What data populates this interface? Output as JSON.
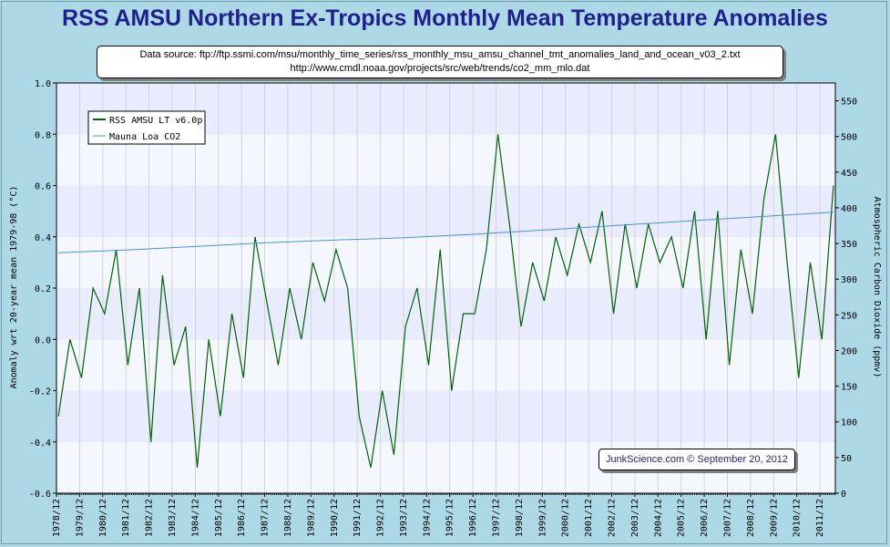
{
  "header": {
    "title": "RSS AMSU Northern Ex-Tropics Monthly Mean Temperature Anomalies"
  },
  "source": {
    "line1": "Data source: ftp://ftp.ssmi.com/msu/monthly_time_series/rss_monthly_msu_amsu_channel_tmt_anomalies_land_and_ocean_v03_2.txt",
    "line2": "http://www.cmdl.noaa.gov/projects/src/web/trends/co2_mm_mlo.dat"
  },
  "credit": {
    "text": "JunkScience.com © September 20, 2012"
  },
  "colors": {
    "background": "#add8e6",
    "plot_band_light": "#f5f7ff",
    "plot_band_dark": "#e9ecff",
    "temperature_series": "#006400",
    "co2_series": "#4a90e2",
    "title": "#1f1f8f"
  },
  "chart_data": {
    "type": "line",
    "title": "RSS AMSU Northern Ex-Tropics Monthly Mean Temperature Anomalies",
    "ylabel": "Anomaly wrt 20-year mean 1979-98 (°C)",
    "y2label": "Atmospheric Carbon Dioxide (ppmv)",
    "ylim": [
      -0.6,
      1.0
    ],
    "y2lim": [
      0,
      575
    ],
    "xlim": [
      "1978/12",
      "2012/08"
    ],
    "y_ticks": [
      "-0.6",
      "-0.4",
      "-0.2",
      "0.0",
      "0.2",
      "0.4",
      "0.6",
      "0.8",
      "1.0"
    ],
    "y2_ticks": [
      "0",
      "50",
      "100",
      "150",
      "200",
      "250",
      "300",
      "350",
      "400",
      "450",
      "500",
      "550"
    ],
    "x_ticks": [
      "1978/12",
      "1979/12",
      "1980/12",
      "1981/12",
      "1982/12",
      "1983/12",
      "1984/12",
      "1985/12",
      "1986/12",
      "1987/12",
      "1988/12",
      "1989/12",
      "1990/12",
      "1991/12",
      "1992/12",
      "1993/12",
      "1994/12",
      "1995/12",
      "1996/12",
      "1997/12",
      "1998/12",
      "1999/12",
      "2000/12",
      "2001/12",
      "2002/12",
      "2003/12",
      "2004/12",
      "2005/12",
      "2006/12",
      "2007/12",
      "2008/12",
      "2009/12",
      "2010/12",
      "2011/12"
    ],
    "grid": true,
    "legend": "top-left",
    "series": [
      {
        "name": "RSS AMSU LT v6.0p",
        "axis": "left",
        "x": [
          1979.0,
          1979.5,
          1980.0,
          1980.5,
          1981.0,
          1981.5,
          1982.0,
          1982.5,
          1983.0,
          1983.5,
          1984.0,
          1984.5,
          1985.0,
          1985.5,
          1986.0,
          1986.5,
          1987.0,
          1987.5,
          1988.0,
          1988.5,
          1989.0,
          1989.5,
          1990.0,
          1990.5,
          1991.0,
          1991.5,
          1992.0,
          1992.5,
          1993.0,
          1993.5,
          1994.0,
          1994.5,
          1995.0,
          1995.5,
          1996.0,
          1996.5,
          1997.0,
          1997.5,
          1998.0,
          1998.5,
          1999.0,
          1999.5,
          2000.0,
          2000.5,
          2001.0,
          2001.5,
          2002.0,
          2002.5,
          2003.0,
          2003.5,
          2004.0,
          2004.5,
          2005.0,
          2005.5,
          2006.0,
          2006.5,
          2007.0,
          2007.5,
          2008.0,
          2008.5,
          2009.0,
          2009.5,
          2010.0,
          2010.5,
          2011.0,
          2011.5,
          2012.0,
          2012.5
        ],
        "y": [
          -0.3,
          0.0,
          -0.15,
          0.2,
          0.1,
          0.35,
          -0.1,
          0.2,
          -0.4,
          0.25,
          -0.1,
          0.05,
          -0.5,
          0.0,
          -0.3,
          0.1,
          -0.15,
          0.4,
          0.15,
          -0.1,
          0.2,
          0.0,
          0.3,
          0.15,
          0.35,
          0.2,
          -0.3,
          -0.5,
          -0.2,
          -0.45,
          0.05,
          0.2,
          -0.1,
          0.35,
          -0.2,
          0.1,
          0.1,
          0.35,
          0.8,
          0.45,
          0.05,
          0.3,
          0.15,
          0.4,
          0.25,
          0.45,
          0.3,
          0.5,
          0.1,
          0.45,
          0.2,
          0.45,
          0.3,
          0.4,
          0.2,
          0.5,
          0.0,
          0.5,
          -0.1,
          0.35,
          0.1,
          0.55,
          0.8,
          0.3,
          -0.15,
          0.3,
          0.0,
          0.6
        ]
      },
      {
        "name": "Mauna Loa CO2",
        "axis": "right",
        "x": [
          1979.0,
          1982.0,
          1985.0,
          1988.0,
          1991.0,
          1994.0,
          1997.0,
          2000.0,
          2003.0,
          2006.0,
          2009.0,
          2012.5
        ],
        "y": [
          337,
          341,
          346,
          351,
          355,
          358,
          363,
          369,
          375,
          381,
          387,
          394
        ]
      }
    ]
  }
}
